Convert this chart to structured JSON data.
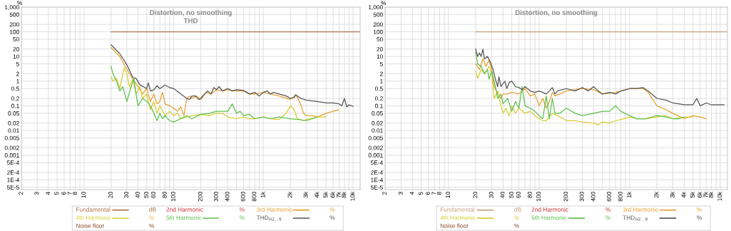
{
  "chart_data": [
    {
      "type": "line",
      "title": "Distortion, no smoothing",
      "subtitle": "THD",
      "ylabel": "%",
      "log": "xy",
      "grid": true,
      "legend": "bottom",
      "marker": "none",
      "line_style": "solid",
      "xlim": [
        2,
        12000
      ],
      "ylim": [
        4e-05,
        1000
      ],
      "xticks": [
        2,
        3,
        4,
        5,
        6,
        7,
        8,
        {
          "value": 9,
          "label": null
        },
        10,
        20,
        30,
        40,
        50,
        60,
        {
          "value": 70,
          "label": null
        },
        80,
        {
          "value": 90,
          "label": null
        },
        100,
        200,
        300,
        400,
        {
          "value": 500,
          "label": null
        },
        600,
        {
          "value": 700,
          "label": null
        },
        800,
        {
          "value": 900,
          "label": null
        },
        {
          "value": 1000,
          "label": "1k"
        },
        {
          "value": 2000,
          "label": "2k"
        },
        {
          "value": 3000,
          "label": "3k"
        },
        {
          "value": 4000,
          "label": "4k"
        },
        {
          "value": 5000,
          "label": "5k"
        },
        {
          "value": 6000,
          "label": "6k"
        },
        {
          "value": 7000,
          "label": "7k"
        },
        {
          "value": 8000,
          "label": "8k"
        },
        {
          "value": 9000,
          "label": null
        },
        {
          "value": 10000,
          "label": "10k"
        }
      ],
      "yticks": [
        {
          "value": 1000,
          "label": "1,000"
        },
        500,
        200,
        100,
        50,
        20,
        10,
        5,
        2,
        1,
        0.5,
        0.2,
        0.1,
        0.05,
        0.02,
        0.01,
        0.005,
        0.002,
        0.001,
        {
          "value": 0.0005,
          "label": "5E-4"
        },
        {
          "value": 0.0002,
          "label": "2E-4"
        },
        {
          "value": 0.0001,
          "label": "1E-4"
        },
        {
          "value": 5e-05,
          "label": "5E-5"
        }
      ],
      "annotations": [
        "dB",
        "%",
        "%",
        "%",
        "%",
        "%",
        "%"
      ],
      "series": [
        {
          "name": "Fundamental",
          "color": "#b0764c",
          "x": [
            20,
            12000
          ],
          "values": [
            100,
            100
          ]
        },
        {
          "name": "2nd Harmonic",
          "color": "#cc3333"
        },
        {
          "name": "3rd Harmonic",
          "color": "#e6a030",
          "x": [
            20,
            25,
            30,
            35,
            40,
            45,
            50,
            55,
            60,
            65,
            70,
            75,
            80,
            90,
            100,
            110,
            120,
            130,
            140,
            150,
            160,
            180,
            200,
            230,
            260,
            300,
            350,
            400,
            500,
            600,
            700,
            800,
            1000,
            1200,
            1500,
            2000,
            2300,
            2600,
            2800,
            3000,
            3500,
            4000,
            5000,
            6000,
            7000
          ],
          "values": [
            23,
            10,
            3,
            1.2,
            0.6,
            0.3,
            0.5,
            0.15,
            0.3,
            0.12,
            0.15,
            0.35,
            0.12,
            0.1,
            0.08,
            0.06,
            0.09,
            0.04,
            0.2,
            0.25,
            0.2,
            0.25,
            0.18,
            0.35,
            0.3,
            0.45,
            0.4,
            0.45,
            0.4,
            0.4,
            0.3,
            0.3,
            0.35,
            0.3,
            0.25,
            0.18,
            0.28,
            0.12,
            0.05,
            0.04,
            0.04,
            0.035,
            0.05,
            0.06,
            0.07
          ]
        },
        {
          "name": "4th Harmonic",
          "color": "#d8cc30",
          "x": [
            20,
            21,
            23,
            25,
            28,
            30,
            32,
            35,
            38,
            42,
            45,
            50,
            55,
            60,
            65,
            70,
            80,
            90,
            100,
            110,
            120,
            140,
            160,
            200,
            250,
            300,
            350,
            400,
            500,
            600,
            700,
            800,
            1000,
            1200,
            1500,
            1800,
            2000,
            2200,
            2400,
            2800,
            3000,
            4000,
            5000
          ],
          "values": [
            1.5,
            1.0,
            1.3,
            0.5,
            3.5,
            2,
            0.6,
            1.2,
            0.3,
            0.6,
            0.2,
            0.3,
            0.07,
            0.15,
            0.05,
            0.1,
            0.04,
            0.06,
            0.04,
            0.05,
            0.03,
            0.035,
            0.04,
            0.045,
            0.04,
            0.05,
            0.05,
            0.035,
            0.03,
            0.035,
            0.03,
            0.03,
            0.035,
            0.03,
            0.028,
            0.05,
            0.1,
            0.07,
            0.03,
            0.025,
            0.028,
            0.035,
            0.035
          ]
        },
        {
          "name": "5th Harmonic",
          "color": "#5cc04a",
          "x": [
            20,
            21,
            23,
            25,
            27,
            30,
            33,
            36,
            38,
            40,
            45,
            50,
            55,
            60,
            65,
            70,
            75,
            80,
            90,
            100,
            120,
            140,
            160,
            200,
            250,
            300,
            350,
            400,
            450,
            500,
            550,
            600,
            700,
            800,
            1000,
            1200,
            1500,
            2000,
            2500,
            3000,
            3500,
            4000
          ],
          "values": [
            4,
            2,
            1,
            0.4,
            0.6,
            0.15,
            0.5,
            1.3,
            0.3,
            0.1,
            0.2,
            0.15,
            0.1,
            0.05,
            0.025,
            0.05,
            0.03,
            0.04,
            0.025,
            0.022,
            0.03,
            0.04,
            0.03,
            0.045,
            0.05,
            0.06,
            0.06,
            0.06,
            0.12,
            0.05,
            0.06,
            0.04,
            0.045,
            0.03,
            0.035,
            0.03,
            0.035,
            0.03,
            0.028,
            0.025,
            0.03,
            0.035
          ]
        },
        {
          "name": "THD$_{H2..9}$",
          "color": "#555555",
          "x": [
            20,
            25,
            30,
            35,
            38,
            42,
            50,
            52,
            55,
            60,
            65,
            70,
            80,
            90,
            100,
            120,
            140,
            150,
            160,
            175,
            190,
            200,
            220,
            240,
            260,
            280,
            300,
            320,
            350,
            400,
            450,
            500,
            600,
            700,
            800,
            900,
            1000,
            1100,
            1200,
            1300,
            1500,
            1800,
            2000,
            2200,
            2300,
            2600,
            3000,
            4000,
            5000,
            6000,
            7000,
            7500,
            8000,
            8500,
            9000,
            10000
          ],
          "values": [
            30,
            13,
            4.6,
            1.4,
            1.3,
            0.7,
            0.5,
            0.86,
            0.4,
            0.45,
            0.65,
            0.5,
            0.7,
            0.55,
            0.5,
            0.3,
            0.2,
            0.18,
            0.25,
            0.25,
            0.18,
            0.2,
            0.3,
            0.4,
            0.3,
            0.55,
            0.45,
            0.6,
            0.4,
            0.5,
            0.4,
            0.45,
            0.42,
            0.3,
            0.35,
            0.25,
            0.35,
            0.4,
            0.3,
            0.35,
            0.3,
            0.25,
            0.2,
            0.22,
            0.28,
            0.2,
            0.17,
            0.15,
            0.13,
            0.13,
            0.12,
            0.1,
            0.2,
            0.09,
            0.11,
            0.095
          ]
        },
        {
          "name": "Noise floor",
          "color": "#8b4a2a"
        }
      ]
    },
    {
      "type": "line",
      "title": "Distortion, no smoothing",
      "ylabel": "%",
      "log": "xy",
      "grid": true,
      "legend": "bottom",
      "marker": "none",
      "line_style": "solid",
      "xlim": [
        2,
        12000
      ],
      "ylim": [
        4e-05,
        1000
      ],
      "xticks": [
        2,
        3,
        4,
        5,
        6,
        7,
        8,
        {
          "value": 9,
          "label": null
        },
        10,
        20,
        30,
        40,
        50,
        60,
        {
          "value": 70,
          "label": null
        },
        80,
        {
          "value": 90,
          "label": null
        },
        100,
        200,
        300,
        400,
        {
          "value": 500,
          "label": null
        },
        600,
        {
          "value": 700,
          "label": null
        },
        800,
        {
          "value": 900,
          "label": null
        },
        {
          "value": 1000,
          "label": "1k"
        },
        {
          "value": 2000,
          "label": "2k"
        },
        {
          "value": 3000,
          "label": "3k"
        },
        {
          "value": 4000,
          "label": "4k"
        },
        {
          "value": 5000,
          "label": "5k"
        },
        {
          "value": 6000,
          "label": "6k"
        },
        {
          "value": 7000,
          "label": "7k"
        },
        {
          "value": 8000,
          "label": "8k"
        },
        {
          "value": 9000,
          "label": null
        },
        {
          "value": 10000,
          "label": "10k"
        }
      ],
      "yticks": [
        {
          "value": 1000,
          "label": "1,000"
        },
        500,
        200,
        100,
        50,
        20,
        10,
        5,
        2,
        1,
        0.5,
        0.2,
        0.1,
        0.05,
        0.02,
        0.01,
        0.005,
        0.002,
        0.001,
        {
          "value": 0.0005,
          "label": "5E-4"
        },
        {
          "value": 0.0002,
          "label": "2E-4"
        },
        {
          "value": 0.0001,
          "label": "1E-4"
        },
        {
          "value": 5e-05,
          "label": "5E-5"
        }
      ],
      "annotations": [
        "dB",
        "%",
        "%",
        "%",
        "%",
        "%",
        "%"
      ],
      "series": [
        {
          "name": "Fundamental",
          "color": "#c8a080",
          "x": [
            20,
            12000
          ],
          "values": [
            100,
            100
          ]
        },
        {
          "name": "2nd Harmonic",
          "color": "#cc3333"
        },
        {
          "name": "3rd Harmonic",
          "color": "#e6a030",
          "x": [
            20,
            22,
            24,
            26,
            28,
            30,
            32,
            35,
            38,
            40,
            45,
            50,
            60,
            70,
            80,
            90,
            100,
            110,
            120,
            130,
            140,
            150,
            200,
            300,
            400,
            500,
            700,
            1000,
            1400,
            1600,
            2000,
            2500,
            3000,
            4000,
            5000,
            6000,
            7000
          ],
          "values": [
            5,
            3,
            8,
            4,
            7,
            3,
            0.6,
            0.3,
            0.2,
            0.3,
            0.3,
            0.35,
            0.3,
            0.5,
            0.25,
            0.3,
            0.1,
            0.2,
            0.08,
            0.15,
            0.35,
            0.25,
            0.4,
            0.5,
            0.45,
            0.3,
            0.35,
            0.5,
            0.5,
            0.35,
            0.1,
            0.07,
            0.05,
            0.03,
            0.04,
            0.035,
            0.03
          ]
        },
        {
          "name": "4th Harmonic",
          "color": "#d8cc30",
          "x": [
            20,
            21,
            23,
            25,
            28,
            30,
            32,
            35,
            38,
            40,
            43,
            47,
            50,
            55,
            60,
            70,
            80,
            90,
            100,
            110,
            120,
            140,
            160,
            200,
            250,
            300,
            400,
            450,
            500,
            600,
            700,
            800,
            1000,
            1200,
            1500,
            2000,
            2500,
            3000,
            4000,
            5000
          ],
          "values": [
            2.5,
            1.3,
            3,
            2,
            4,
            2,
            0.2,
            0.4,
            0.1,
            0.05,
            0.08,
            0.04,
            0.1,
            0.05,
            0.08,
            0.05,
            0.06,
            0.04,
            0.03,
            0.025,
            0.025,
            0.05,
            0.04,
            0.025,
            0.025,
            0.022,
            0.02,
            0.017,
            0.022,
            0.02,
            0.025,
            0.028,
            0.035,
            0.03,
            0.03,
            0.035,
            0.04,
            0.03,
            0.035,
            0.035
          ]
        },
        {
          "name": "5th Harmonic",
          "color": "#5cc04a",
          "x": [
            20,
            21,
            23,
            25,
            27,
            28,
            30,
            33,
            35,
            38,
            40,
            45,
            50,
            55,
            60,
            65,
            70,
            80,
            90,
            100,
            110,
            120,
            130,
            140,
            150,
            170,
            200,
            250,
            300,
            400,
            500,
            600,
            700,
            800,
            1000,
            1200,
            1500,
            2000,
            2500,
            3000,
            3500,
            4000
          ],
          "values": [
            15,
            5,
            4,
            2,
            3,
            1.2,
            2.5,
            0.6,
            0.2,
            0.3,
            0.12,
            0.2,
            0.06,
            0.15,
            0.08,
            0.6,
            0.1,
            0.08,
            0.06,
            0.04,
            0.03,
            0.25,
            0.03,
            0.2,
            0.05,
            0.05,
            0.08,
            0.05,
            0.04,
            0.05,
            0.06,
            0.06,
            0.1,
            0.06,
            0.04,
            0.03,
            0.03,
            0.04,
            0.035,
            0.03,
            0.03,
            0.035
          ]
        },
        {
          "name": "THD$_{H2..9}$",
          "color": "#555555",
          "x": [
            20,
            21,
            22,
            23,
            24,
            25,
            27,
            29,
            31,
            33,
            35,
            36,
            38,
            40,
            42,
            44,
            47,
            50,
            55,
            60,
            65,
            70,
            80,
            90,
            100,
            110,
            120,
            130,
            140,
            150,
            160,
            200,
            250,
            300,
            350,
            400,
            450,
            500,
            600,
            700,
            800,
            900,
            1000,
            1200,
            1400,
            1600,
            2000,
            2500,
            3000,
            4000,
            5000,
            5500,
            6000,
            7000,
            8000,
            10000,
            11000
          ],
          "values": [
            20,
            10,
            14,
            10,
            20,
            8,
            10,
            6,
            3,
            1.2,
            0.6,
            1.5,
            0.6,
            0.8,
            1.0,
            0.5,
            0.9,
            1.0,
            0.6,
            0.55,
            0.45,
            0.6,
            0.4,
            0.35,
            0.4,
            0.35,
            0.3,
            0.4,
            0.55,
            0.3,
            0.4,
            0.5,
            0.4,
            0.55,
            0.4,
            0.6,
            0.4,
            0.3,
            0.35,
            0.3,
            0.4,
            0.45,
            0.5,
            0.5,
            0.55,
            0.4,
            0.2,
            0.17,
            0.13,
            0.11,
            0.11,
            0.2,
            0.1,
            0.13,
            0.11,
            0.11,
            0.11
          ]
        },
        {
          "name": "Noise floor",
          "color": "#8b4a2a"
        }
      ]
    }
  ]
}
